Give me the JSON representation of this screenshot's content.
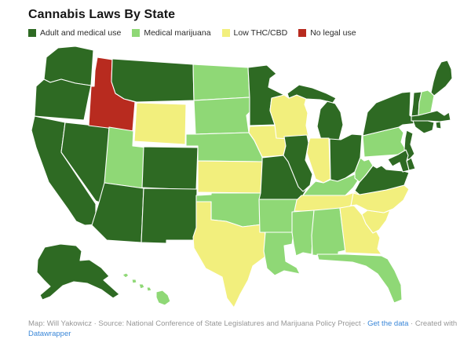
{
  "title": "Cannabis Laws By State",
  "palette": {
    "adult_medical": "#2e6a23",
    "medical": "#8fd876",
    "low_thc": "#f2ef7d",
    "no_legal": "#b82b1f"
  },
  "legend": [
    {
      "key": "adult_medical",
      "label": "Adult and medical use",
      "color": "#2e6a23"
    },
    {
      "key": "medical",
      "label": "Medical marijuana",
      "color": "#8fd876"
    },
    {
      "key": "low_thc",
      "label": "Low THC/CBD",
      "color": "#f2ef7d"
    },
    {
      "key": "no_legal",
      "label": "No legal use",
      "color": "#b82b1f"
    }
  ],
  "chart_data": {
    "type": "choropleth",
    "subtype": "us-states-map",
    "title": "Cannabis Laws By State",
    "legend_entries": [
      "Adult and medical use",
      "Medical marijuana",
      "Low THC/CBD",
      "No legal use"
    ],
    "categories_to_states": {
      "Adult and medical use": [
        "WA",
        "OR",
        "CA",
        "NV",
        "AZ",
        "NM",
        "CO",
        "MT",
        "AK",
        "MN",
        "MI",
        "IL",
        "MO",
        "OH",
        "VA",
        "NY",
        "NJ",
        "VT",
        "ME",
        "MA",
        "RI",
        "CT",
        "DE",
        "MD"
      ],
      "Medical marijuana": [
        "UT",
        "ND",
        "SD",
        "NE",
        "OK",
        "AR",
        "LA",
        "MS",
        "AL",
        "FL",
        "PA",
        "WV",
        "KY",
        "NH",
        "HI"
      ],
      "Low THC/CBD": [
        "WY",
        "KS",
        "IA",
        "WI",
        "IN",
        "TX",
        "TN",
        "NC",
        "SC",
        "GA"
      ],
      "No legal use": [
        "ID"
      ]
    }
  },
  "states": [
    {
      "id": "WA",
      "name": "Washington",
      "category": "adult_medical"
    },
    {
      "id": "OR",
      "name": "Oregon",
      "category": "adult_medical"
    },
    {
      "id": "CA",
      "name": "California",
      "category": "adult_medical"
    },
    {
      "id": "NV",
      "name": "Nevada",
      "category": "adult_medical"
    },
    {
      "id": "ID",
      "name": "Idaho",
      "category": "no_legal"
    },
    {
      "id": "MT",
      "name": "Montana",
      "category": "adult_medical"
    },
    {
      "id": "WY",
      "name": "Wyoming",
      "category": "low_thc"
    },
    {
      "id": "UT",
      "name": "Utah",
      "category": "medical"
    },
    {
      "id": "CO",
      "name": "Colorado",
      "category": "adult_medical"
    },
    {
      "id": "AZ",
      "name": "Arizona",
      "category": "adult_medical"
    },
    {
      "id": "NM",
      "name": "New Mexico",
      "category": "adult_medical"
    },
    {
      "id": "ND",
      "name": "North Dakota",
      "category": "medical"
    },
    {
      "id": "SD",
      "name": "South Dakota",
      "category": "medical"
    },
    {
      "id": "NE",
      "name": "Nebraska",
      "category": "medical"
    },
    {
      "id": "KS",
      "name": "Kansas",
      "category": "low_thc"
    },
    {
      "id": "OK",
      "name": "Oklahoma",
      "category": "medical"
    },
    {
      "id": "TX",
      "name": "Texas",
      "category": "low_thc"
    },
    {
      "id": "MN",
      "name": "Minnesota",
      "category": "adult_medical"
    },
    {
      "id": "IA",
      "name": "Iowa",
      "category": "low_thc"
    },
    {
      "id": "MO",
      "name": "Missouri",
      "category": "adult_medical"
    },
    {
      "id": "AR",
      "name": "Arkansas",
      "category": "medical"
    },
    {
      "id": "LA",
      "name": "Louisiana",
      "category": "medical"
    },
    {
      "id": "WI",
      "name": "Wisconsin",
      "category": "low_thc"
    },
    {
      "id": "MI",
      "name": "Michigan",
      "category": "adult_medical"
    },
    {
      "id": "IL",
      "name": "Illinois",
      "category": "adult_medical"
    },
    {
      "id": "IN",
      "name": "Indiana",
      "category": "low_thc"
    },
    {
      "id": "OH",
      "name": "Ohio",
      "category": "adult_medical"
    },
    {
      "id": "KY",
      "name": "Kentucky",
      "category": "medical"
    },
    {
      "id": "TN",
      "name": "Tennessee",
      "category": "low_thc"
    },
    {
      "id": "MS",
      "name": "Mississippi",
      "category": "medical"
    },
    {
      "id": "AL",
      "name": "Alabama",
      "category": "medical"
    },
    {
      "id": "GA",
      "name": "Georgia",
      "category": "low_thc"
    },
    {
      "id": "FL",
      "name": "Florida",
      "category": "medical"
    },
    {
      "id": "SC",
      "name": "South Carolina",
      "category": "low_thc"
    },
    {
      "id": "NC",
      "name": "North Carolina",
      "category": "low_thc"
    },
    {
      "id": "VA",
      "name": "Virginia",
      "category": "adult_medical"
    },
    {
      "id": "WV",
      "name": "West Virginia",
      "category": "medical"
    },
    {
      "id": "PA",
      "name": "Pennsylvania",
      "category": "medical"
    },
    {
      "id": "NY",
      "name": "New York",
      "category": "adult_medical"
    },
    {
      "id": "NJ",
      "name": "New Jersey",
      "category": "adult_medical"
    },
    {
      "id": "DE",
      "name": "Delaware",
      "category": "adult_medical"
    },
    {
      "id": "MD",
      "name": "Maryland",
      "category": "adult_medical"
    },
    {
      "id": "VT",
      "name": "Vermont",
      "category": "adult_medical"
    },
    {
      "id": "NH",
      "name": "New Hampshire",
      "category": "medical"
    },
    {
      "id": "ME",
      "name": "Maine",
      "category": "adult_medical"
    },
    {
      "id": "MA",
      "name": "Massachusetts",
      "category": "adult_medical"
    },
    {
      "id": "RI",
      "name": "Rhode Island",
      "category": "adult_medical"
    },
    {
      "id": "CT",
      "name": "Connecticut",
      "category": "adult_medical"
    },
    {
      "id": "AK",
      "name": "Alaska",
      "category": "adult_medical"
    },
    {
      "id": "HI",
      "name": "Hawaii",
      "category": "medical"
    }
  ],
  "footer": {
    "text_before": "Map: Will Yakowicz · Source: National Conference of State Legislatures and Marijuana Policy Project · ",
    "link_get_data": "Get the data",
    "text_between": " · Created with ",
    "link_datawrapper": "Datawrapper",
    "link_color": "#3a87d8",
    "text_color": "#979797"
  }
}
